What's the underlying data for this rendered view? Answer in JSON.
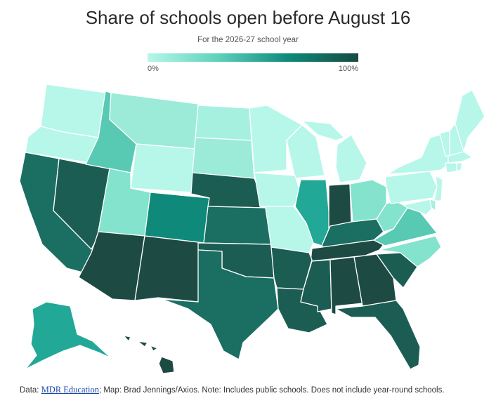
{
  "title": "Share of schools open before August 16",
  "subtitle": "For the 2026-27 school year",
  "legend": {
    "min_label": "0%",
    "max_label": "100%",
    "colors": [
      "#b6f7e9",
      "#5fd1bc",
      "#0e8a7a",
      "#174a42"
    ]
  },
  "footer": {
    "prefix": "Data: ",
    "source_link": "MDR Education",
    "rest": "; Map: Brad Jennings/Axios. Note: Includes public schools. Does not include year-round schools."
  },
  "palette": {
    "l1": "#b6f7e9",
    "l2": "#a6f0df",
    "l3": "#9bebd8",
    "l4": "#83e3cd",
    "m1": "#58c9b3",
    "m2": "#22a897",
    "m3": "#0f8a7a",
    "d1": "#1a6e62",
    "d2": "#1c5d53",
    "d3": "#1d4b44"
  }
}
